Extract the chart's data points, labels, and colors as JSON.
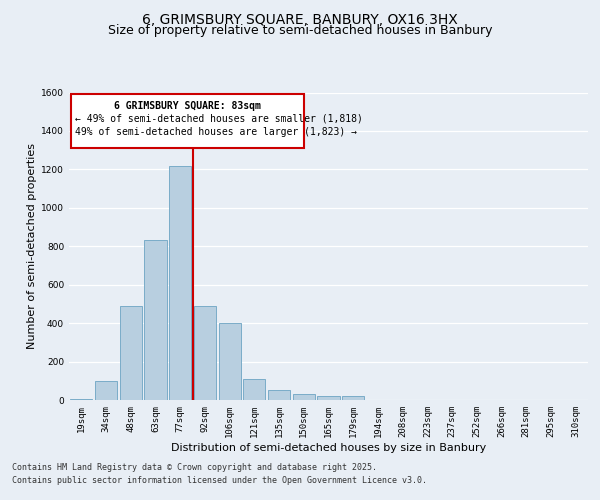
{
  "title": "6, GRIMSBURY SQUARE, BANBURY, OX16 3HX",
  "subtitle": "Size of property relative to semi-detached houses in Banbury",
  "xlabel": "Distribution of semi-detached houses by size in Banbury",
  "ylabel": "Number of semi-detached properties",
  "categories": [
    "19sqm",
    "34sqm",
    "48sqm",
    "63sqm",
    "77sqm",
    "92sqm",
    "106sqm",
    "121sqm",
    "135sqm",
    "150sqm",
    "165sqm",
    "179sqm",
    "194sqm",
    "208sqm",
    "223sqm",
    "237sqm",
    "252sqm",
    "266sqm",
    "281sqm",
    "295sqm",
    "310sqm"
  ],
  "values": [
    5,
    100,
    490,
    830,
    1220,
    490,
    400,
    110,
    50,
    30,
    20,
    20,
    0,
    0,
    0,
    0,
    0,
    0,
    0,
    0,
    0
  ],
  "bar_color": "#b8cfe0",
  "bar_edgecolor": "#7aacc8",
  "vline_color": "#cc0000",
  "vline_pos": 4.53,
  "annotation_title": "6 GRIMSBURY SQUARE: 83sqm",
  "annotation_line2": "← 49% of semi-detached houses are smaller (1,818)",
  "annotation_line3": "49% of semi-detached houses are larger (1,823) →",
  "annotation_box_color": "#cc0000",
  "ylim": [
    0,
    1600
  ],
  "yticks": [
    0,
    200,
    400,
    600,
    800,
    1000,
    1200,
    1400,
    1600
  ],
  "footer_line1": "Contains HM Land Registry data © Crown copyright and database right 2025.",
  "footer_line2": "Contains public sector information licensed under the Open Government Licence v3.0.",
  "bg_color": "#e8eef5",
  "plot_bg_color": "#e8eef5",
  "grid_color": "#ffffff",
  "title_fontsize": 10,
  "subtitle_fontsize": 9,
  "axis_label_fontsize": 8,
  "tick_fontsize": 6.5,
  "footer_fontsize": 6,
  "ann_fontsize": 7
}
